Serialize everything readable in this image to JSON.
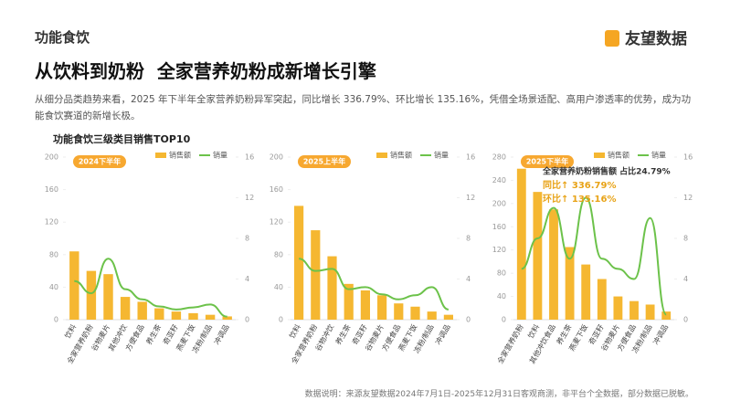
{
  "header": {
    "section": "功能食饮",
    "logo": "友望数据",
    "title": "从饮料到奶粉  全家营养奶粉成新增长引擎",
    "paragraph": "从细分品类趋势来看，2025 年下半年全家营养奶粉异军突起，同比增长 336.79%、环比增长 135.16%，凭借全场景适配、高用户渗透率的优势，成为功能食饮赛道的新增长极。",
    "chart_title": "功能食饮三级类目销售TOP10"
  },
  "footnote": "数据说明：来源友望数据2024年7月1日-2025年12月31日客观商测，非平台个全数据，部分数据已脱敏。",
  "chart_data": [
    {
      "type": "bar-line",
      "badge": "2024下半年",
      "categories": [
        "饮料",
        "全家营养奶粉",
        "谷物麦片",
        "其他冲饮",
        "方便食品",
        "养生茶",
        "奇亚籽",
        "燕麦下饭",
        "冻粉/制品",
        "冲调品"
      ],
      "series": [
        {
          "name": "销售额",
          "color": "#f5b731",
          "values": [
            84,
            60,
            56,
            28,
            22,
            14,
            10,
            8,
            6,
            4
          ]
        },
        {
          "name": "销量",
          "color": "#6cc24a",
          "axis": "y2",
          "values": [
            3.8,
            2.6,
            6,
            3,
            2,
            1.3,
            1,
            1.2,
            1.5,
            0.3
          ]
        }
      ],
      "ylim": [
        0,
        200
      ],
      "yticks": [
        0,
        40,
        80,
        120,
        160,
        200
      ],
      "y2lim": [
        0,
        16
      ],
      "y2ticks": [
        0,
        4,
        8,
        12,
        16
      ]
    },
    {
      "type": "bar-line",
      "badge": "2025上半年",
      "categories": [
        "饮料",
        "全家营养奶粉",
        "谷物冲饮",
        "养生茶",
        "奇亚籽",
        "谷物麦片",
        "方便食品",
        "燕麦下饭",
        "冻粉/制品",
        "冲调品"
      ],
      "series": [
        {
          "name": "销售额",
          "color": "#f5b731",
          "values": [
            140,
            110,
            78,
            44,
            36,
            30,
            20,
            16,
            10,
            6
          ]
        },
        {
          "name": "销量",
          "color": "#6cc24a",
          "axis": "y2",
          "values": [
            6,
            4.8,
            5,
            3,
            3.2,
            2.5,
            2,
            2.4,
            3.2,
            1
          ]
        }
      ],
      "ylim": [
        0,
        200
      ],
      "yticks": [
        0,
        40,
        80,
        120,
        160,
        200
      ],
      "y2lim": [
        0,
        16
      ],
      "y2ticks": [
        0,
        4,
        8,
        12,
        16
      ]
    },
    {
      "type": "bar-line",
      "badge": "2025下半年",
      "categories": [
        "全家营养奶粉",
        "饮料",
        "其他冲饮食品",
        "养生茶",
        "燕麦下饭",
        "奇亚籽",
        "谷物麦片",
        "方便食品",
        "冻粉/制品",
        "冲调品"
      ],
      "series": [
        {
          "name": "销售额",
          "color": "#f5b731",
          "values": [
            260,
            220,
            190,
            125,
            95,
            70,
            40,
            32,
            26,
            14
          ]
        },
        {
          "name": "销量",
          "color": "#6cc24a",
          "axis": "y2",
          "values": [
            5,
            8,
            11,
            6,
            12,
            6,
            5,
            4,
            10,
            0.5
          ]
        }
      ],
      "ylim": [
        0,
        280
      ],
      "yticks": [
        0,
        40,
        80,
        120,
        160,
        200,
        240,
        280
      ],
      "y2lim": [
        0,
        16
      ],
      "y2ticks": [
        0,
        4,
        8,
        12,
        16
      ],
      "annotations": [
        "全家营养奶粉销售额 占比24.79%",
        "同比↑ 336.79%",
        "环比↑ 135.16%"
      ]
    }
  ]
}
